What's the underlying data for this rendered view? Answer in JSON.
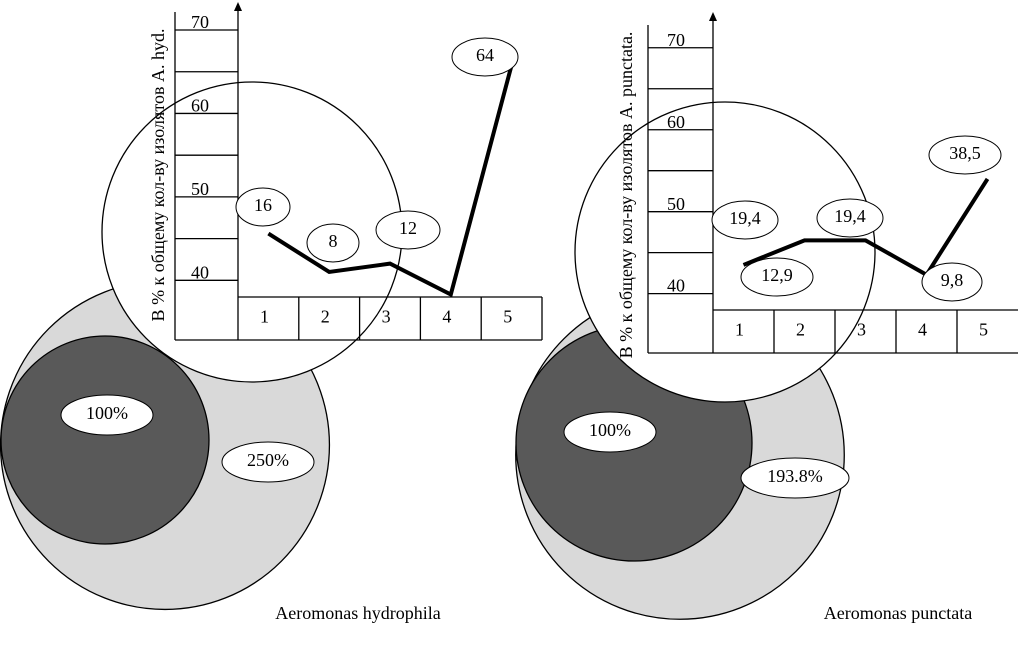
{
  "chart_data": [
    {
      "type": "line",
      "y_label": "В % к общему кол-ву изолятов A. hyd.",
      "caption": "Aeromonas hydrophila",
      "categories": [
        "1",
        "2",
        "3",
        "4",
        "5"
      ],
      "values": [
        45.6,
        41,
        42,
        38.3,
        65.8
      ],
      "ylim": [
        38,
        73
      ],
      "yticks": [
        40,
        50,
        60,
        70
      ],
      "color": "#000000",
      "annotations": [
        "16",
        "8",
        "12",
        "64"
      ],
      "circle_values": [
        100,
        250
      ],
      "circle_labels": [
        "100%",
        "250%"
      ],
      "circle_colors": [
        "#595959",
        "#d9d9d9"
      ]
    },
    {
      "type": "line",
      "y_label": "В % к общему кол-ву изолятов A. punctata.",
      "caption": "Aeromonas punctata",
      "categories": [
        "1",
        "2",
        "3",
        "4",
        "5"
      ],
      "values": [
        43.5,
        46.5,
        46.5,
        42.3,
        54
      ],
      "ylim": [
        38,
        74
      ],
      "yticks": [
        40,
        50,
        60,
        70
      ],
      "color": "#000000",
      "annotations": [
        "19,4",
        "12,9",
        "19,4",
        "9,8",
        "38,5"
      ],
      "circle_values": [
        100,
        193.8
      ],
      "circle_labels": [
        "100%",
        "193.8%"
      ],
      "circle_colors": [
        "#595959",
        "#d9d9d9"
      ]
    }
  ]
}
